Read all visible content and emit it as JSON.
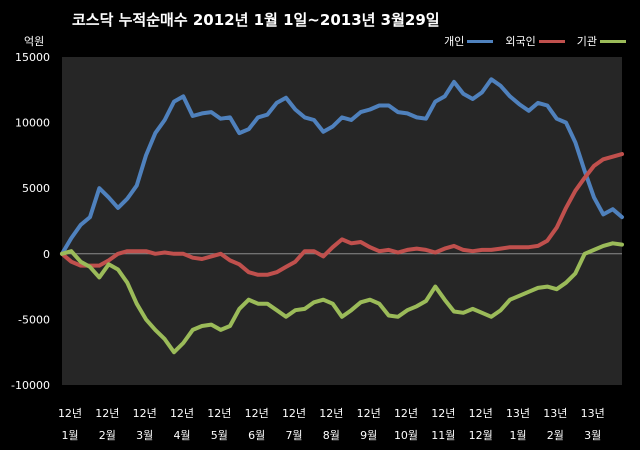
{
  "chart_data": {
    "type": "line",
    "title": "코스닥  누적순매수 2012년 1월 1일~2013년 3월29일",
    "ylabel": "억원",
    "xlabel": "",
    "ylim": [
      -10000,
      15000
    ],
    "yticks": [
      15000,
      10000,
      5000,
      0,
      -5000,
      -10000
    ],
    "ytick_labels": [
      "15000",
      "10000",
      "5000",
      "0",
      "-5000",
      "-10000"
    ],
    "x_tick_labels": [
      [
        "12년",
        "1월"
      ],
      [
        "12년",
        "2월"
      ],
      [
        "12년",
        "3월"
      ],
      [
        "12년",
        "4월"
      ],
      [
        "12년",
        "5월"
      ],
      [
        "12년",
        "6월"
      ],
      [
        "12년",
        "7월"
      ],
      [
        "12년",
        "8월"
      ],
      [
        "12년",
        "9월"
      ],
      [
        "12년",
        "10월"
      ],
      [
        "12년",
        "11월"
      ],
      [
        "12년",
        "12월"
      ],
      [
        "13년",
        "1월"
      ],
      [
        "13년",
        "2월"
      ],
      [
        "13년",
        "3월"
      ]
    ],
    "x": [
      0,
      0.25,
      0.5,
      0.75,
      1,
      1.25,
      1.5,
      1.75,
      2,
      2.25,
      2.5,
      2.75,
      3,
      3.25,
      3.5,
      3.75,
      4,
      4.25,
      4.5,
      4.75,
      5,
      5.25,
      5.5,
      5.75,
      6,
      6.25,
      6.5,
      6.75,
      7,
      7.25,
      7.5,
      7.75,
      8,
      8.25,
      8.5,
      8.75,
      9,
      9.25,
      9.5,
      9.75,
      10,
      10.25,
      10.5,
      10.75,
      11,
      11.25,
      11.5,
      11.75,
      12,
      12.25,
      12.5,
      12.75,
      13,
      13.25,
      13.5,
      13.75,
      14,
      14.25,
      14.5,
      14.75,
      15
    ],
    "series": [
      {
        "name": "개인",
        "color": "#4f81bd",
        "values": [
          0,
          1200,
          2200,
          2800,
          5000,
          4300,
          3500,
          4200,
          5200,
          7500,
          9200,
          10200,
          11600,
          12000,
          10500,
          10700,
          10800,
          10300,
          10400,
          9200,
          9500,
          10400,
          10600,
          11500,
          11900,
          11000,
          10400,
          10200,
          9300,
          9700,
          10400,
          10200,
          10800,
          11000,
          11300,
          11300,
          10800,
          10700,
          10400,
          10300,
          11600,
          12000,
          13100,
          12200,
          11800,
          12300,
          13300,
          12800,
          12000,
          11400,
          10900,
          11500,
          11300,
          10300,
          10000,
          8500,
          6300,
          4300,
          3000,
          3400,
          2800
        ]
      },
      {
        "name": "외국인",
        "color": "#c0504d",
        "values": [
          0,
          -600,
          -900,
          -900,
          -900,
          -500,
          0,
          200,
          200,
          200,
          0,
          100,
          0,
          0,
          -300,
          -400,
          -200,
          0,
          -500,
          -800,
          -1400,
          -1600,
          -1600,
          -1400,
          -1000,
          -600,
          200,
          200,
          -200,
          500,
          1100,
          800,
          900,
          500,
          200,
          300,
          100,
          300,
          400,
          300,
          100,
          400,
          600,
          300,
          200,
          300,
          300,
          400,
          500,
          500,
          500,
          600,
          1000,
          2000,
          3500,
          4800,
          5800,
          6700,
          7200,
          7400,
          7600
        ]
      },
      {
        "name": "기관",
        "color": "#9bbb59",
        "values": [
          0,
          200,
          -600,
          -1000,
          -1800,
          -800,
          -1200,
          -2200,
          -3800,
          -5000,
          -5800,
          -6500,
          -7500,
          -6800,
          -5800,
          -5500,
          -5400,
          -5800,
          -5500,
          -4200,
          -3500,
          -3800,
          -3800,
          -4300,
          -4800,
          -4300,
          -4200,
          -3700,
          -3500,
          -3800,
          -4800,
          -4300,
          -3700,
          -3500,
          -3800,
          -4700,
          -4800,
          -4300,
          -4000,
          -3600,
          -2500,
          -3500,
          -4400,
          -4500,
          -4200,
          -4500,
          -4800,
          -4300,
          -3500,
          -3200,
          -2900,
          -2600,
          -2500,
          -2700,
          -2200,
          -1500,
          0,
          300,
          600,
          800,
          700
        ]
      }
    ],
    "grid": false,
    "legend": "top-right"
  }
}
